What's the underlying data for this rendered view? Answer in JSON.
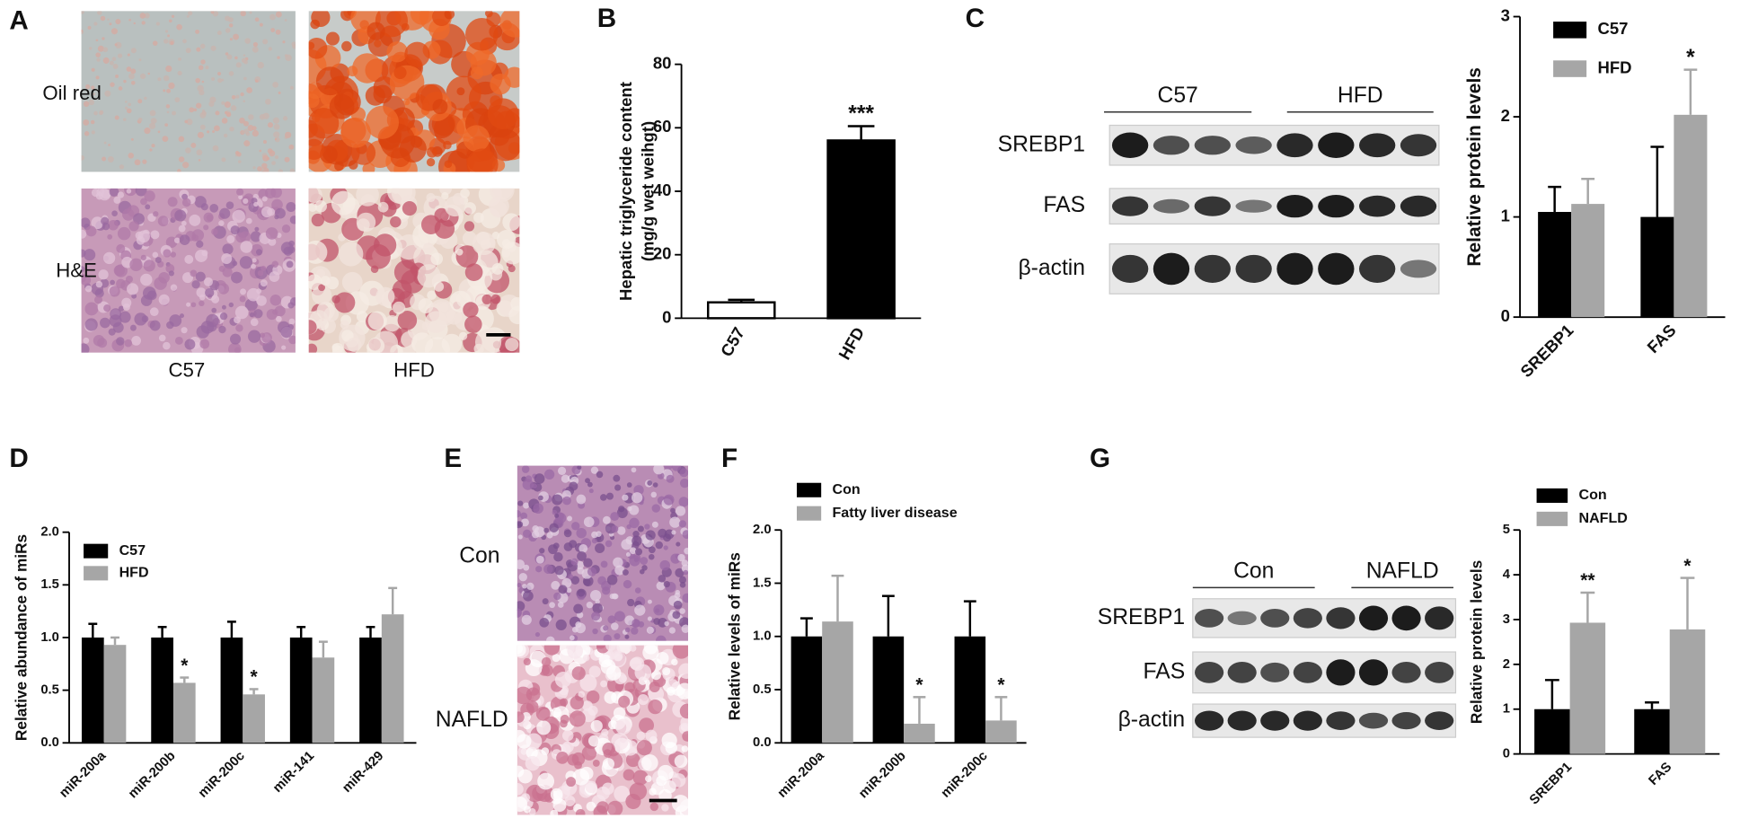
{
  "panels": {
    "letters": [
      "A",
      "B",
      "C",
      "D",
      "E",
      "F",
      "G"
    ],
    "a": {
      "rows": [
        "Oil red",
        "H&E"
      ],
      "columns": [
        "C57",
        "HFD"
      ]
    },
    "c_blot": {
      "groups": [
        "C57",
        "HFD"
      ],
      "proteins": [
        "SREBP1",
        "FAS",
        "β-actin"
      ]
    },
    "e": {
      "rows": [
        "Con",
        "NAFLD"
      ]
    },
    "g_blot": {
      "groups": [
        "Con",
        "NAFLD"
      ],
      "proteins": [
        "SREBP1",
        "FAS",
        "β-actin"
      ]
    }
  },
  "chart_data": [
    {
      "type": "bar",
      "y_label": [
        "Hepatic triglyceride content",
        "(mg/g wet weihgt)"
      ],
      "categories": [
        "C57",
        "HFD"
      ],
      "values": [
        5,
        56
      ],
      "errors": [
        0.8,
        4.5
      ],
      "colors": [
        "#ffffff",
        "#000000"
      ],
      "edgecolor": "#000000",
      "annotations": [
        null,
        "***"
      ],
      "ylim": [
        0,
        80
      ],
      "yticks": [
        0,
        20,
        40,
        60,
        80
      ]
    },
    {
      "type": "bar",
      "y_label": "Relative protein levels",
      "categories": [
        "SREBP1",
        "FAS"
      ],
      "series": [
        {
          "name": "C57",
          "color": "#000000",
          "values": [
            1.05,
            1.0
          ],
          "errors": [
            0.25,
            0.7
          ],
          "annotations": [
            null,
            null
          ]
        },
        {
          "name": "HFD",
          "color": "#a6a6a6",
          "values": [
            1.13,
            2.02
          ],
          "errors": [
            0.25,
            0.45
          ],
          "annotations": [
            null,
            "*"
          ]
        }
      ],
      "ylim": [
        0,
        3
      ],
      "yticks": [
        0,
        1,
        2,
        3
      ]
    },
    {
      "type": "bar",
      "y_label": "Relative abundance of miRs",
      "categories": [
        "miR-200a",
        "miR-200b",
        "miR-200c",
        "miR-141",
        "miR-429"
      ],
      "series": [
        {
          "name": "C57",
          "color": "#000000",
          "values": [
            1,
            1,
            1,
            1,
            1
          ],
          "errors": [
            0.13,
            0.1,
            0.15,
            0.1,
            0.1
          ],
          "annotations": [
            null,
            null,
            null,
            null,
            null
          ]
        },
        {
          "name": "HFD",
          "color": "#a6a6a6",
          "values": [
            0.93,
            0.57,
            0.46,
            0.81,
            1.22
          ],
          "errors": [
            0.07,
            0.05,
            0.05,
            0.15,
            0.25
          ],
          "annotations": [
            null,
            "*",
            "*",
            null,
            null
          ]
        }
      ],
      "ylim": [
        0,
        2
      ],
      "yticks": [
        {
          "value": 0,
          "label": "0.0"
        },
        0.5,
        {
          "value": 1,
          "label": "1.0"
        },
        1.5,
        {
          "value": 2,
          "label": "2.0"
        }
      ]
    },
    {
      "type": "bar",
      "y_label": "Relative levels of miRs",
      "categories": [
        "miR-200a",
        "miR-200b",
        "miR-200c"
      ],
      "series": [
        {
          "name": "Con",
          "color": "#000000",
          "values": [
            1,
            1,
            1
          ],
          "errors": [
            0.17,
            0.38,
            0.33
          ],
          "annotations": [
            null,
            null,
            null
          ]
        },
        {
          "name": "Fatty liver disease",
          "color": "#a6a6a6",
          "values": [
            1.14,
            0.18,
            0.21
          ],
          "errors": [
            0.43,
            0.25,
            0.22
          ],
          "annotations": [
            null,
            "*",
            "*"
          ]
        }
      ],
      "ylim": [
        0,
        2
      ],
      "yticks": [
        {
          "value": 0,
          "label": "0.0"
        },
        0.5,
        {
          "value": 1,
          "label": "1.0"
        },
        1.5,
        {
          "value": 2,
          "label": "2.0"
        }
      ]
    },
    {
      "type": "bar",
      "y_label": "Relative protein levels",
      "categories": [
        "SREBP1",
        "FAS"
      ],
      "series": [
        {
          "name": "Con",
          "color": "#000000",
          "values": [
            1.0,
            1.0
          ],
          "errors": [
            0.65,
            0.15
          ],
          "annotations": [
            null,
            null
          ]
        },
        {
          "name": "NAFLD",
          "color": "#a6a6a6",
          "values": [
            2.93,
            2.78
          ],
          "errors": [
            0.67,
            1.15
          ],
          "annotations": [
            "**",
            "*"
          ]
        }
      ],
      "ylim": [
        0,
        5
      ],
      "yticks": [
        0,
        1,
        2,
        3,
        4,
        5
      ]
    }
  ]
}
